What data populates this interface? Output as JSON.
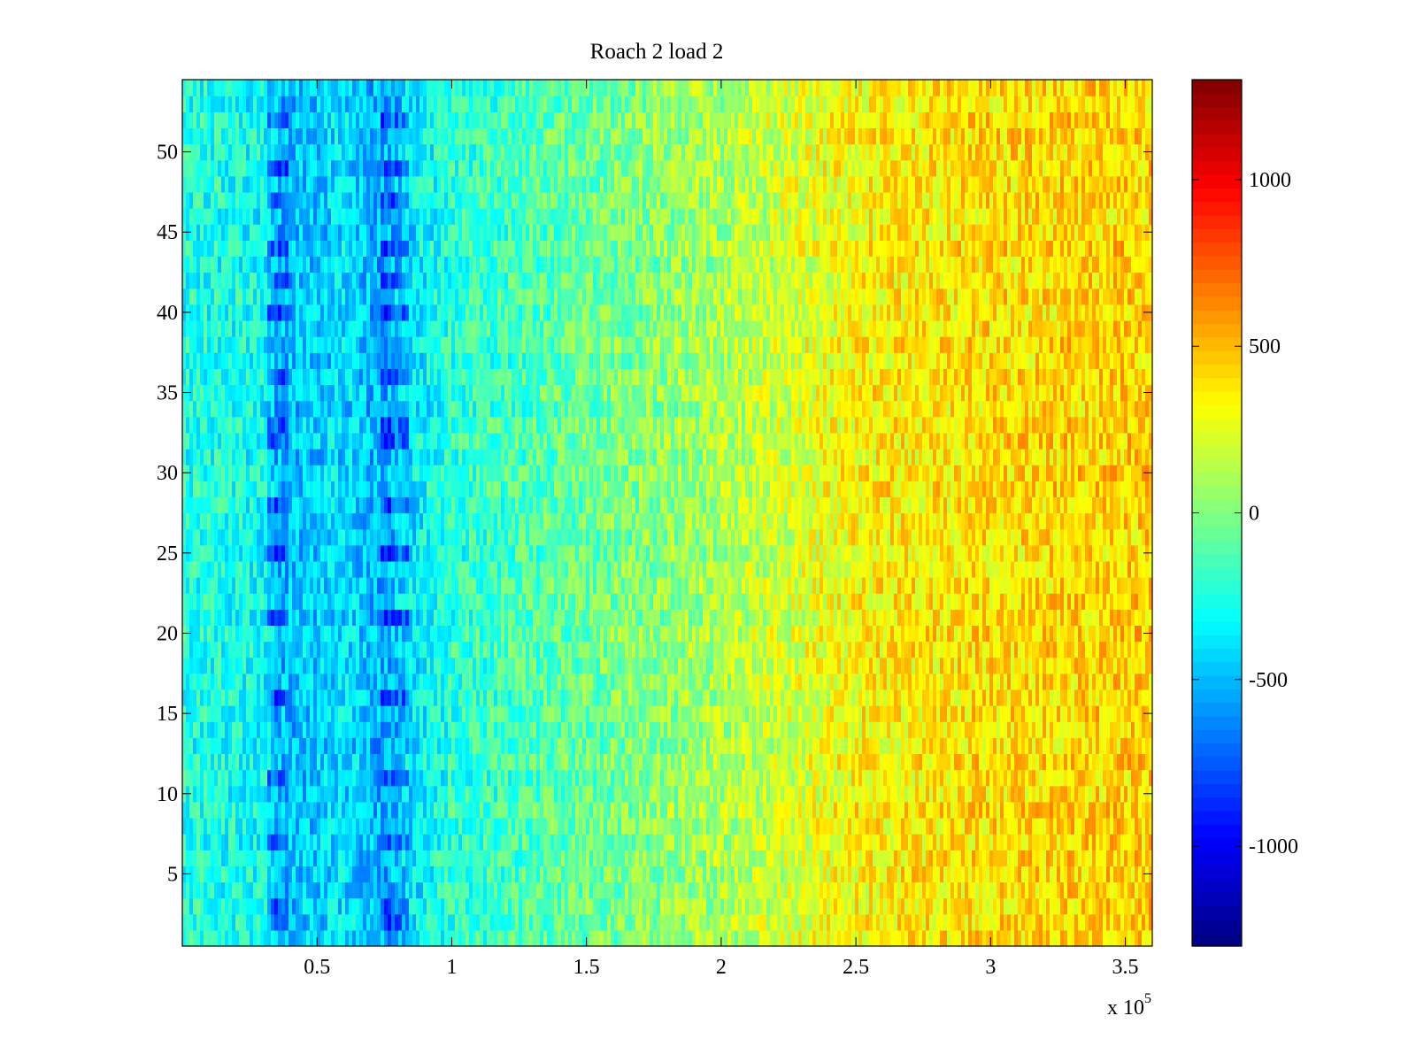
{
  "chart_data": {
    "type": "heatmap",
    "title": "Roach 2 load 2",
    "xlabel": "",
    "ylabel": "",
    "x_range": [
      0,
      360000
    ],
    "y_range": [
      0.5,
      54.5
    ],
    "x_ticks": [
      50000,
      100000,
      150000,
      200000,
      250000,
      300000,
      350000
    ],
    "x_tick_labels": [
      "0.5",
      "1",
      "1.5",
      "2",
      "2.5",
      "3",
      "3.5"
    ],
    "x_multiplier_label": {
      "base": "x 10",
      "exponent": "5"
    },
    "y_ticks": [
      5,
      10,
      15,
      20,
      25,
      30,
      35,
      40,
      45,
      50
    ],
    "y_tick_labels": [
      "5",
      "10",
      "15",
      "20",
      "25",
      "30",
      "35",
      "40",
      "45",
      "50"
    ],
    "rows": 54,
    "colormap": "jet",
    "color_range": [
      -1300,
      1300
    ],
    "colorbar_ticks": [
      -1000,
      -500,
      0,
      500,
      1000
    ],
    "colorbar_tick_labels": [
      "-1000",
      "-500",
      "0",
      "500",
      "1000"
    ],
    "trend": {
      "x": [
        0,
        30000,
        35000,
        60000,
        75000,
        85000,
        100000,
        150000,
        200000,
        250000,
        300000,
        360000
      ],
      "mean": [
        -250,
        -300,
        -520,
        -400,
        -560,
        -380,
        -230,
        -60,
        100,
        330,
        400,
        440
      ]
    },
    "dark_rows": [
      2,
      3,
      7,
      11,
      16,
      21,
      25,
      28,
      32,
      33,
      36,
      40,
      42,
      44,
      47,
      49,
      52
    ],
    "grid": false
  }
}
